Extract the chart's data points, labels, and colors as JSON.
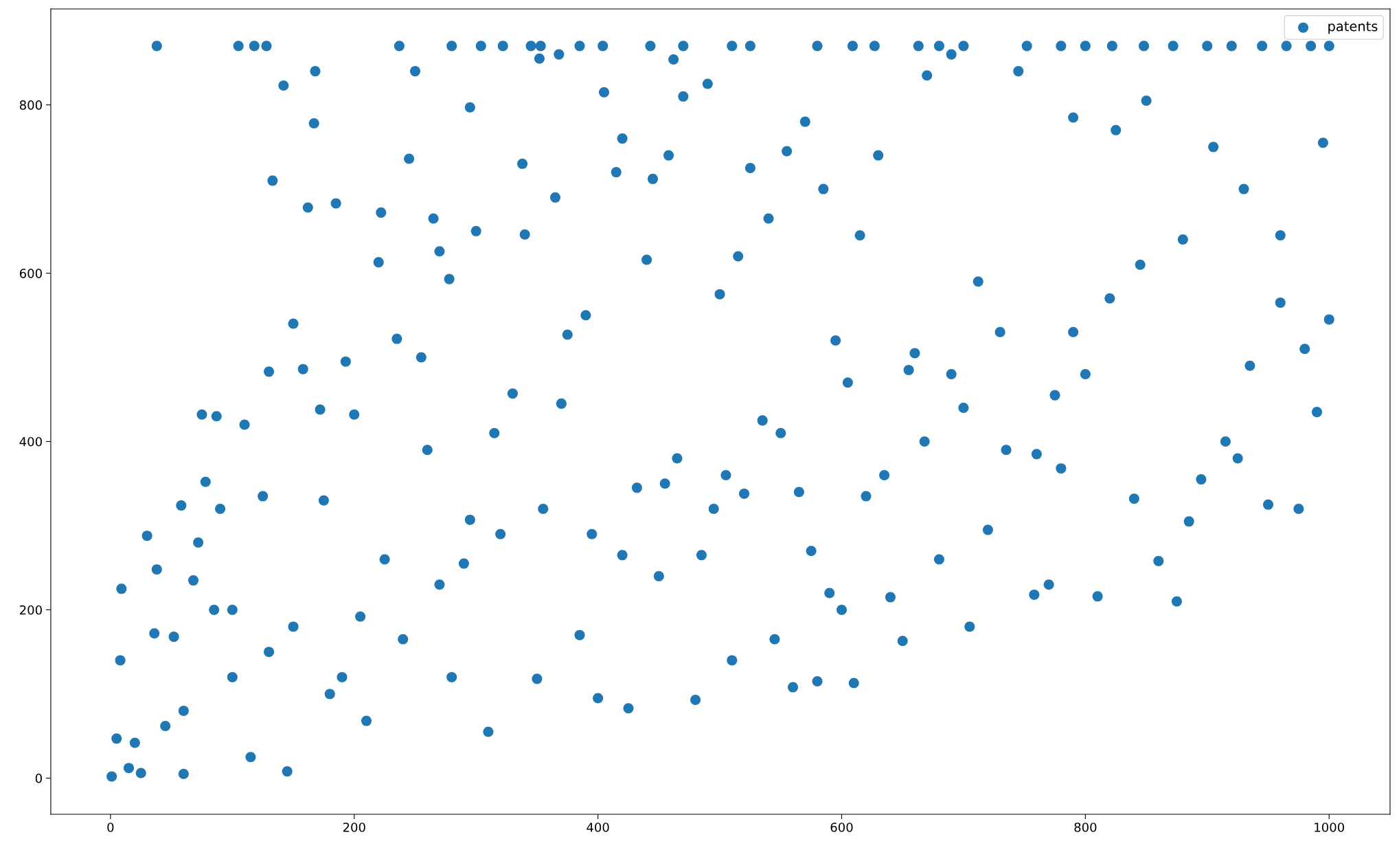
{
  "chart_data": {
    "type": "scatter",
    "xlim": [
      -49,
      1050
    ],
    "ylim": [
      -43,
      914
    ],
    "xticks": [
      0,
      200,
      400,
      600,
      800,
      1000
    ],
    "yticks": [
      0,
      200,
      400,
      600,
      800
    ],
    "legend": "top right",
    "marker": "circle",
    "series": [
      {
        "name": "patents",
        "color": "#1f77b4",
        "x": [
          38,
          105,
          118,
          128,
          237,
          280,
          304,
          322,
          345,
          353,
          385,
          404,
          443,
          470,
          510,
          525,
          580,
          609,
          627,
          663,
          680,
          700,
          752,
          780,
          800,
          822,
          848,
          872,
          900,
          920,
          945,
          965,
          985,
          1000,
          1,
          5,
          8,
          9,
          15,
          20,
          25,
          30,
          36,
          38,
          45,
          52,
          58,
          60,
          68,
          72,
          75,
          78,
          85,
          87,
          90,
          100,
          110,
          115,
          125,
          130,
          133,
          142,
          145,
          150,
          158,
          162,
          167,
          168,
          172,
          185,
          193,
          200,
          210,
          220,
          222,
          235,
          245,
          250,
          255,
          265,
          270,
          278,
          290,
          295,
          300,
          310,
          315,
          338,
          340,
          350,
          352,
          365,
          368,
          375,
          390,
          400,
          405,
          415,
          420,
          425,
          440,
          445,
          458,
          462,
          470,
          480,
          490,
          500,
          510,
          515,
          525,
          540,
          545,
          555,
          560,
          570,
          580,
          585,
          600,
          610,
          615,
          630,
          640,
          650,
          655,
          670,
          680,
          690,
          700,
          705,
          720,
          735,
          745,
          758,
          770,
          780,
          790,
          800,
          810,
          825,
          840,
          850,
          860,
          875,
          885,
          895,
          905,
          925,
          935,
          950,
          960,
          975,
          990,
          995,
          1000,
          60,
          100,
          130,
          150,
          175,
          180,
          190,
          205,
          225,
          240,
          260,
          270,
          280,
          295,
          320,
          330,
          355,
          370,
          385,
          395,
          420,
          432,
          450,
          455,
          465,
          485,
          495,
          505,
          520,
          535,
          550,
          565,
          575,
          590,
          595,
          605,
          620,
          635,
          660,
          668,
          690,
          712,
          730,
          760,
          775,
          790,
          820,
          845,
          880,
          915,
          930,
          960,
          980
        ],
        "values": [
          870,
          870,
          870,
          870,
          870,
          870,
          870,
          870,
          870,
          870,
          870,
          870,
          870,
          870,
          870,
          870,
          870,
          870,
          870,
          870,
          870,
          870,
          870,
          870,
          870,
          870,
          870,
          870,
          870,
          870,
          870,
          870,
          870,
          870,
          2,
          47,
          140,
          225,
          12,
          42,
          6,
          288,
          172,
          248,
          62,
          168,
          324,
          5,
          235,
          280,
          432,
          352,
          200,
          430,
          320,
          120,
          420,
          25,
          335,
          483,
          710,
          823,
          8,
          540,
          486,
          678,
          778,
          840,
          438,
          683,
          495,
          432,
          68,
          613,
          672,
          522,
          736,
          840,
          500,
          665,
          626,
          593,
          255,
          797,
          650,
          55,
          410,
          730,
          646,
          118,
          855,
          690,
          860,
          527,
          550,
          95,
          815,
          720,
          760,
          83,
          616,
          712,
          740,
          854,
          810,
          93,
          825,
          575,
          140,
          620,
          725,
          665,
          165,
          745,
          108,
          780,
          115,
          700,
          200,
          113,
          645,
          740,
          215,
          163,
          485,
          835,
          260,
          860,
          440,
          180,
          295,
          390,
          840,
          218,
          230,
          368,
          785,
          480,
          216,
          770,
          332,
          805,
          258,
          210,
          305,
          355,
          750,
          380,
          490,
          325,
          645,
          320,
          435,
          755,
          545,
          80,
          200,
          150,
          180,
          330,
          100,
          120,
          192,
          260,
          165,
          390,
          230,
          120,
          307,
          290,
          457,
          320,
          445,
          170,
          290,
          265,
          345,
          240,
          350,
          380,
          265,
          320,
          360,
          338,
          425,
          410,
          340,
          270,
          220,
          520,
          470,
          335,
          360,
          505,
          400,
          480,
          590,
          530,
          385,
          455,
          530,
          570,
          610,
          640,
          400,
          700,
          565,
          510
        ]
      }
    ]
  }
}
